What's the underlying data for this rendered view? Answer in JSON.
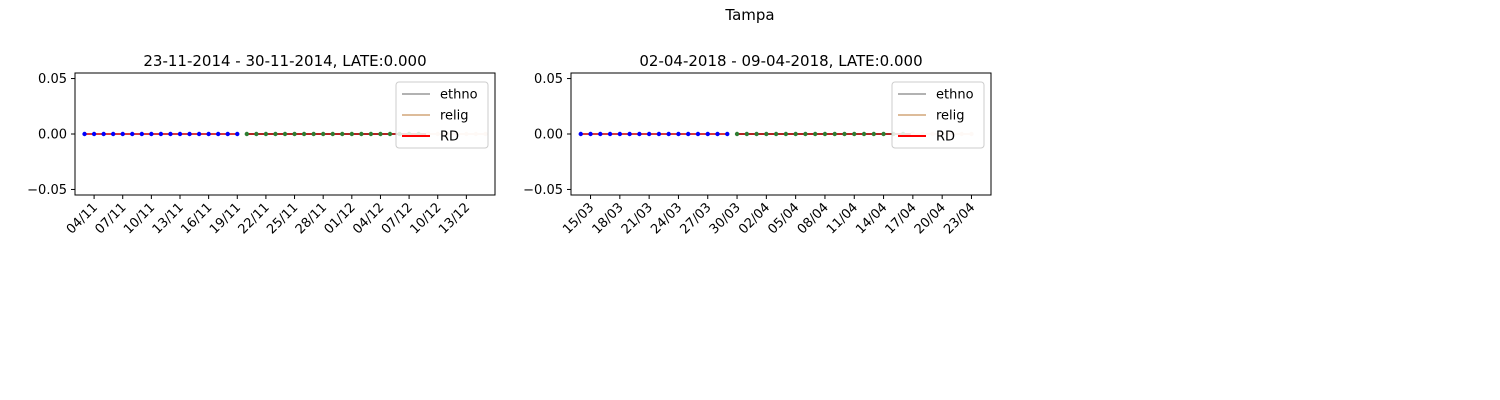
{
  "figure": {
    "suptitle": "Tampa"
  },
  "chart_data": [
    {
      "type": "line",
      "title": "23-11-2014 - 30-11-2014, LATE:0.000",
      "xlabel": "",
      "ylabel": "",
      "ylim": [
        -0.055,
        0.055
      ],
      "yticks": [
        "0.05",
        "0.00",
        "−0.05"
      ],
      "ytick_values": [
        0.05,
        0,
        -0.05
      ],
      "xlim": [
        "2014-11-02",
        "2014-12-16"
      ],
      "xticks": [
        "04/11",
        "07/11",
        "10/11",
        "13/11",
        "16/11",
        "19/11",
        "22/11",
        "25/11",
        "28/11",
        "01/12",
        "04/12",
        "07/12",
        "10/12",
        "13/12"
      ],
      "xtick_dates": [
        "2014-11-04",
        "2014-11-07",
        "2014-11-10",
        "2014-11-13",
        "2014-11-16",
        "2014-11-19",
        "2014-11-22",
        "2014-11-25",
        "2014-11-28",
        "2014-12-01",
        "2014-12-04",
        "2014-12-07",
        "2014-12-10",
        "2014-12-13"
      ],
      "segments": [
        {
          "start": "2014-11-03",
          "end": "2014-11-19",
          "value": 0.0,
          "line_color": "#d93a3a",
          "marker_color": "#0000ff"
        },
        {
          "start": "2014-11-20",
          "end": "2014-12-09",
          "value": 0.0,
          "line_color": "#b22222",
          "marker_color": "#2e7d32"
        },
        {
          "start": "2014-12-09",
          "end": "2014-12-15",
          "value": 0.0,
          "line_color": "#f5d8c4",
          "marker_color": "#f5d8c4"
        }
      ],
      "series": [
        {
          "name": "ethno",
          "color": "#999999"
        },
        {
          "name": "relig",
          "color": "#d2a679"
        },
        {
          "name": "RD",
          "color": "#ff0000"
        }
      ],
      "legend": "upper right",
      "grid": false
    },
    {
      "type": "line",
      "title": "02-04-2018 - 09-04-2018, LATE:0.000",
      "xlabel": "",
      "ylabel": "",
      "ylim": [
        -0.055,
        0.055
      ],
      "yticks": [
        "0.05",
        "0.00",
        "−0.05"
      ],
      "ytick_values": [
        0.05,
        0,
        -0.05
      ],
      "xlim": [
        "2018-03-13",
        "2018-04-25"
      ],
      "xticks": [
        "15/03",
        "18/03",
        "21/03",
        "24/03",
        "27/03",
        "30/03",
        "02/04",
        "05/04",
        "08/04",
        "11/04",
        "14/04",
        "17/04",
        "20/04",
        "23/04"
      ],
      "xtick_dates": [
        "2018-03-15",
        "2018-03-18",
        "2018-03-21",
        "2018-03-24",
        "2018-03-27",
        "2018-03-30",
        "2018-04-02",
        "2018-04-05",
        "2018-04-08",
        "2018-04-11",
        "2018-04-14",
        "2018-04-17",
        "2018-04-20",
        "2018-04-23"
      ],
      "segments": [
        {
          "start": "2018-03-14",
          "end": "2018-03-29",
          "value": 0.0,
          "line_color": "#d93a3a",
          "marker_color": "#0000ff"
        },
        {
          "start": "2018-03-30",
          "end": "2018-04-17",
          "value": 0.0,
          "line_color": "#b22222",
          "marker_color": "#2e7d32"
        },
        {
          "start": "2018-04-17",
          "end": "2018-04-23",
          "value": 0.0,
          "line_color": "#f5d8c4",
          "marker_color": "#f5d8c4"
        }
      ],
      "series": [
        {
          "name": "ethno",
          "color": "#999999"
        },
        {
          "name": "relig",
          "color": "#d2a679"
        },
        {
          "name": "RD",
          "color": "#ff0000"
        }
      ],
      "legend": "upper right",
      "grid": false
    }
  ]
}
